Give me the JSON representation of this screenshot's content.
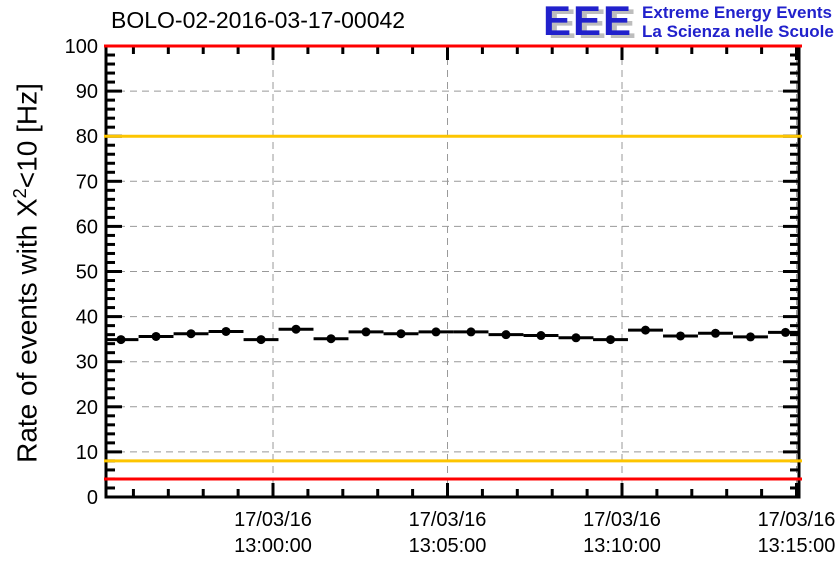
{
  "header": {
    "title": "BOLO-02-2016-03-17-00042",
    "logo": {
      "acronym": "EEE",
      "line1": "Extreme Energy Events",
      "line2": "La Scienza nelle Scuole",
      "color": "#2121cc",
      "shadow_color": "#bdbdbd"
    }
  },
  "y_axis": {
    "label_prefix": "Rate of events with X",
    "label_sup": "2",
    "label_suffix": "<10 [Hz]"
  },
  "chart_data": {
    "type": "scatter",
    "title": "BOLO-02-2016-03-17-00042",
    "ylabel": "Rate of events with X^2<10 [Hz]",
    "xlabel": "",
    "ylim": [
      0,
      100
    ],
    "y_major_step": 10,
    "y_minor_step": 2,
    "grid": "dashed-major-both-axes",
    "grid_color": "#999999",
    "frame_color": "#000000",
    "x_ticks": [
      {
        "frac": 0.241,
        "date": "17/03/16",
        "time": "13:00:00"
      },
      {
        "frac": 0.4928,
        "date": "17/03/16",
        "time": "13:05:00"
      },
      {
        "frac": 0.7446,
        "date": "17/03/16",
        "time": "13:10:00"
      },
      {
        "frac": 0.9964,
        "date": "17/03/16",
        "time": "13:15:00"
      }
    ],
    "x_minor_per_major": 5,
    "x_minor_minutes": 1,
    "threshold_lines": [
      {
        "y": 100,
        "color": "#ff0000"
      },
      {
        "y": 80,
        "color": "#fdc500"
      },
      {
        "y": 8,
        "color": "#fdc500"
      },
      {
        "y": 4,
        "color": "#ff0000"
      }
    ],
    "series": [
      {
        "name": "rate-of-events",
        "marker": "filled-circle",
        "color": "#000000",
        "x_err_frac": 0.02518,
        "y_err": 0.8,
        "points": [
          {
            "x_frac": 0.0216,
            "y": 34.9
          },
          {
            "x_frac": 0.0722,
            "y": 35.6
          },
          {
            "x_frac": 0.1227,
            "y": 36.2
          },
          {
            "x_frac": 0.1732,
            "y": 36.7
          },
          {
            "x_frac": 0.2237,
            "y": 34.9
          },
          {
            "x_frac": 0.2742,
            "y": 37.2
          },
          {
            "x_frac": 0.3247,
            "y": 35.1
          },
          {
            "x_frac": 0.3752,
            "y": 36.6
          },
          {
            "x_frac": 0.4257,
            "y": 36.2
          },
          {
            "x_frac": 0.4762,
            "y": 36.6
          },
          {
            "x_frac": 0.5267,
            "y": 36.6
          },
          {
            "x_frac": 0.5772,
            "y": 36.0
          },
          {
            "x_frac": 0.6277,
            "y": 35.8
          },
          {
            "x_frac": 0.6782,
            "y": 35.3
          },
          {
            "x_frac": 0.728,
            "y": 34.9
          },
          {
            "x_frac": 0.7785,
            "y": 37.0
          },
          {
            "x_frac": 0.829,
            "y": 35.7
          },
          {
            "x_frac": 0.8795,
            "y": 36.3
          },
          {
            "x_frac": 0.93,
            "y": 35.5
          },
          {
            "x_frac": 0.9805,
            "y": 36.5
          }
        ]
      }
    ]
  }
}
